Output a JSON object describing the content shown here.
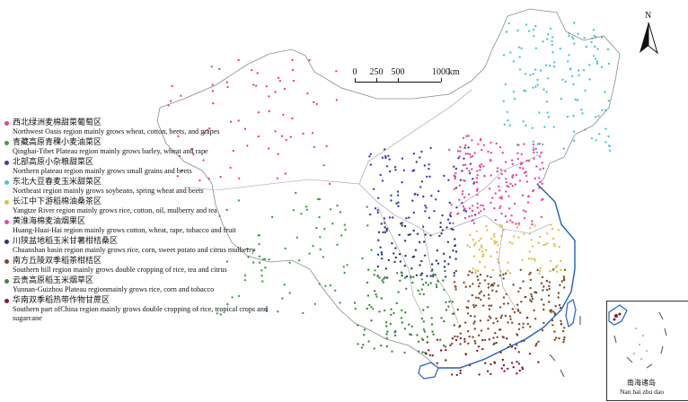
{
  "scale": {
    "ticks": [
      "0",
      "250",
      "500",
      "1000"
    ],
    "unit": "km"
  },
  "north_label": "N",
  "inset_label_zh": "南海诸岛",
  "inset_label_en": "Nan hai zhu dao",
  "colors": {
    "boundary": "#8a8a8a",
    "coast": "#1f5fbf"
  },
  "legend": [
    {
      "zh": "西北绿洲麦棉甜菜葡萄区",
      "en": "Northwest Oasis region mainly grows wheat, cotton, beets, and grapes",
      "color": "#e84a6a"
    },
    {
      "zh": "青藏高原青稞小麦油菜区",
      "en": "Qinghai-Tibet Plateau region mainly grows barley, wheat and rape",
      "color": "#3aa63a"
    },
    {
      "zh": "北部高原小杂粮甜菜区",
      "en": "Northern plateau region mainly grows small grains and beets",
      "color": "#3b3fa8"
    },
    {
      "zh": "东北大豆春麦玉米甜菜区",
      "en": "Northeast region mainly grows soybeans, spring wheat and beets",
      "color": "#4fc3d8"
    },
    {
      "zh": "长江中下游稻棉油桑茶区",
      "en": "Yangtze River region mainly grows rice, cotton, oil, mulberry and tea",
      "color": "#d8c34a"
    },
    {
      "zh": "黄淮海棉麦油烟果区",
      "en": "Huang-Huai-Hai region mainly grows cotton, wheat, rape, tobacco and fruit",
      "color": "#e84aa0"
    },
    {
      "zh": "川陕盆地稻玉米甘薯柑桔桑区",
      "en": "Chuanshan basin region mainly grows rice, corn, sweet potato and citrus mulberry",
      "color": "#2a3a6a"
    },
    {
      "zh": "南方丘陵双季稻茶柑桔区",
      "en": "Southern hill region mainly grows double cropping of rice, tea and citrus",
      "color": "#7a4a2a"
    },
    {
      "zh": "云贵高原稻玉米烟草区",
      "en": "Yunnan-Guizhou Plateau regionmainly grows rice, corn and tobacco",
      "color": "#3a8a3a"
    },
    {
      "zh": "华南双季稻热带作物甘蔗区",
      "en": "Southern part ofChina region mainly grows double cropping of rice, tropical crops and sugarcane",
      "color": "#8a1a2a"
    }
  ]
}
